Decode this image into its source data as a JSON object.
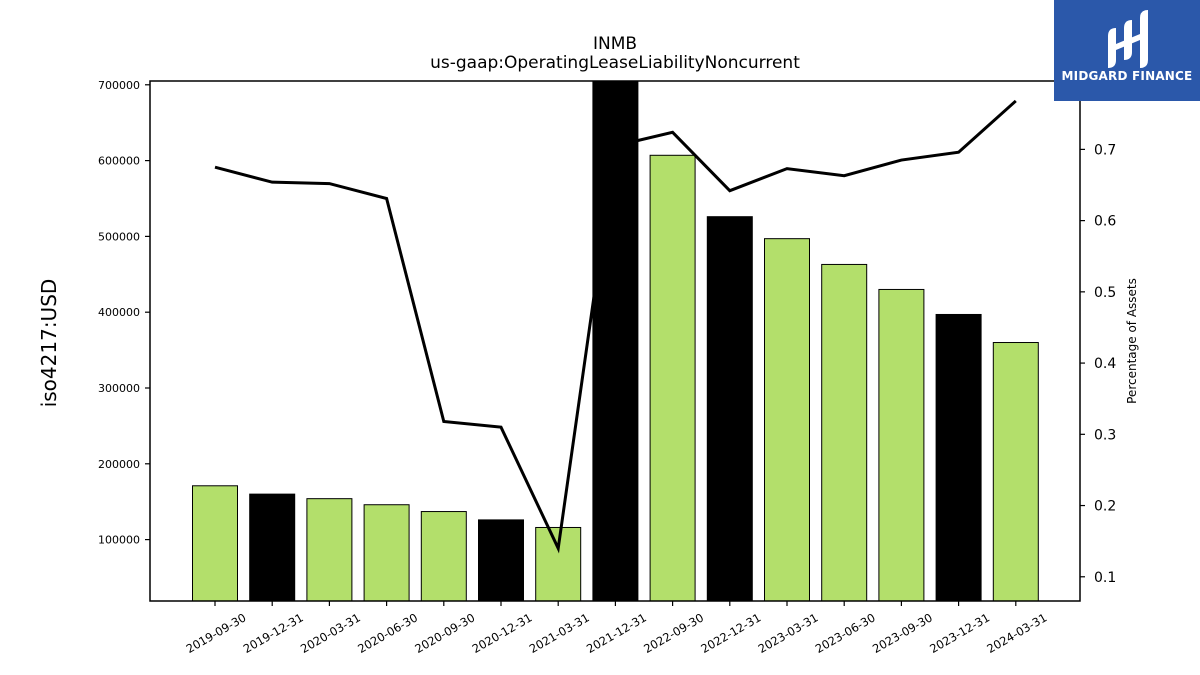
{
  "chart_data": {
    "type": "bar",
    "title": "INMB",
    "subtitle": "us-gaap:OperatingLeaseLiabilityNoncurrent",
    "ylabel": "iso4217:USD",
    "y2label": "Percentage of Assets",
    "categories": [
      "2019-09-30",
      "2019-12-31",
      "2020-03-31",
      "2020-06-30",
      "2020-09-30",
      "2020-12-31",
      "2021-03-31",
      "2021-12-31",
      "2022-09-30",
      "2022-12-31",
      "2023-03-31",
      "2023-06-30",
      "2023-09-30",
      "2023-12-31",
      "2024-03-31"
    ],
    "series": [
      {
        "type": "bar",
        "values": [
          171000,
          160000,
          154000,
          146000,
          137000,
          126000,
          116000,
          706000,
          607000,
          526000,
          497000,
          463000,
          430000,
          397000,
          360000
        ],
        "period_type": [
          "Q",
          "FY",
          "Q",
          "Q",
          "Q",
          "FY",
          "Q",
          "FY",
          "Q",
          "FY",
          "Q",
          "Q",
          "Q",
          "FY",
          "Q"
        ]
      },
      {
        "type": "line",
        "axis": "right",
        "values": [
          0.675,
          0.654,
          0.652,
          0.631,
          0.318,
          0.31,
          0.14,
          0.705,
          0.724,
          0.642,
          0.673,
          0.663,
          0.685,
          0.696,
          0.768
        ]
      }
    ],
    "ylim": [
      19000,
      705000
    ],
    "y2lim": [
      0.066,
      0.796
    ],
    "yticks": [
      100000,
      200000,
      300000,
      400000,
      500000,
      600000,
      700000
    ],
    "y2ticks": [
      0.1,
      0.2,
      0.3,
      0.4,
      0.5,
      0.6,
      0.7
    ],
    "colors": {
      "bar_quarter": "#b3df6b",
      "bar_fy": "#000000",
      "line": "#000000"
    },
    "grid": false,
    "legend": "none"
  },
  "logo": {
    "text": "MIDGARD FINANCE",
    "background": "#2b58aa"
  }
}
